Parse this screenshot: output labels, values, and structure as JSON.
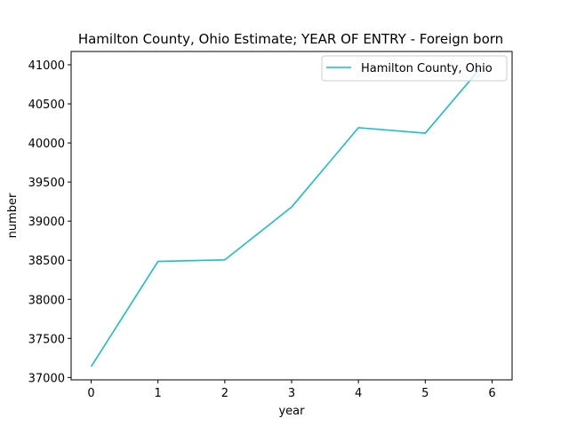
{
  "chart_data": {
    "type": "line",
    "title": "Hamilton County, Ohio Estimate; YEAR OF ENTRY - Foreign born",
    "xlabel": "year",
    "ylabel": "number",
    "x": [
      0,
      1,
      2,
      3,
      4,
      5,
      6
    ],
    "x_ticks": [
      "0",
      "1",
      "2",
      "3",
      "4",
      "5",
      "6"
    ],
    "y_ticks": [
      "37000",
      "37500",
      "38000",
      "38500",
      "39000",
      "39500",
      "40000",
      "40500",
      "41000"
    ],
    "xlim": [
      -0.3,
      6.3
    ],
    "ylim": [
      36970,
      41170
    ],
    "series": [
      {
        "name": "Hamilton County, Ohio",
        "color": "#17becf",
        "x": [
          0,
          1,
          2,
          3,
          4,
          5,
          5.87
        ],
        "values": [
          37140,
          38485,
          38505,
          39180,
          40195,
          40125,
          41000
        ]
      }
    ],
    "legend": {
      "position": "top-right"
    },
    "grid": false
  }
}
